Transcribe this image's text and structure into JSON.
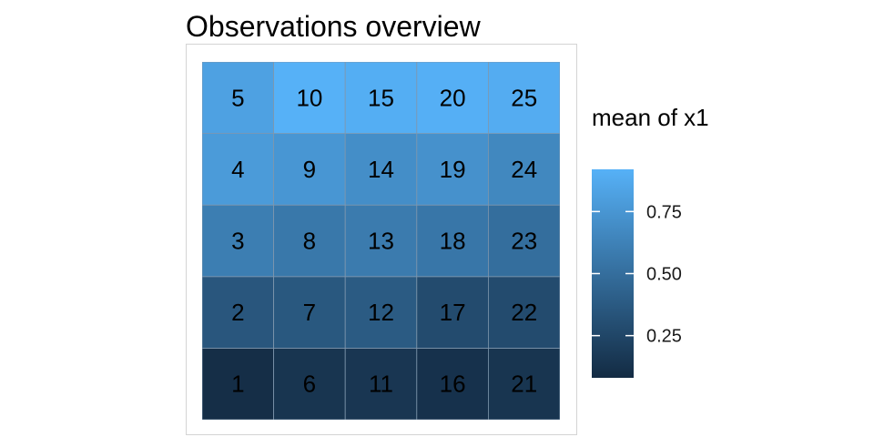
{
  "chart_data": {
    "type": "heatmap",
    "title": "Observations overview",
    "legend": {
      "title": "mean of x1",
      "ticks": [
        0.25,
        0.5,
        0.75
      ],
      "tick_labels": [
        "0.25",
        "0.50",
        "0.75"
      ],
      "range": [
        0.08,
        0.92
      ],
      "color_low": "#132B43",
      "color_high": "#56B1F7",
      "placement": "right"
    },
    "grid": {
      "rows": 5,
      "cols": 5
    },
    "cells": [
      {
        "label": "1",
        "row": 0,
        "col": 0,
        "value": 0.1
      },
      {
        "label": "6",
        "row": 0,
        "col": 1,
        "value": 0.14
      },
      {
        "label": "11",
        "row": 0,
        "col": 2,
        "value": 0.15
      },
      {
        "label": "16",
        "row": 0,
        "col": 3,
        "value": 0.12
      },
      {
        "label": "21",
        "row": 0,
        "col": 4,
        "value": 0.14
      },
      {
        "label": "2",
        "row": 1,
        "col": 0,
        "value": 0.35
      },
      {
        "label": "7",
        "row": 1,
        "col": 1,
        "value": 0.36
      },
      {
        "label": "12",
        "row": 1,
        "col": 2,
        "value": 0.38
      },
      {
        "label": "17",
        "row": 1,
        "col": 3,
        "value": 0.28
      },
      {
        "label": "22",
        "row": 1,
        "col": 4,
        "value": 0.28
      },
      {
        "label": "3",
        "row": 2,
        "col": 0,
        "value": 0.6
      },
      {
        "label": "8",
        "row": 2,
        "col": 1,
        "value": 0.56
      },
      {
        "label": "13",
        "row": 2,
        "col": 2,
        "value": 0.58
      },
      {
        "label": "18",
        "row": 2,
        "col": 3,
        "value": 0.55
      },
      {
        "label": "23",
        "row": 2,
        "col": 4,
        "value": 0.5
      },
      {
        "label": "4",
        "row": 3,
        "col": 0,
        "value": 0.78
      },
      {
        "label": "9",
        "row": 3,
        "col": 1,
        "value": 0.75
      },
      {
        "label": "14",
        "row": 3,
        "col": 2,
        "value": 0.7
      },
      {
        "label": "19",
        "row": 3,
        "col": 3,
        "value": 0.72
      },
      {
        "label": "24",
        "row": 3,
        "col": 4,
        "value": 0.66
      },
      {
        "label": "5",
        "row": 4,
        "col": 0,
        "value": 0.82
      },
      {
        "label": "10",
        "row": 4,
        "col": 1,
        "value": 0.92
      },
      {
        "label": "15",
        "row": 4,
        "col": 2,
        "value": 0.9
      },
      {
        "label": "20",
        "row": 4,
        "col": 3,
        "value": 0.91
      },
      {
        "label": "25",
        "row": 4,
        "col": 4,
        "value": 0.89
      }
    ]
  }
}
